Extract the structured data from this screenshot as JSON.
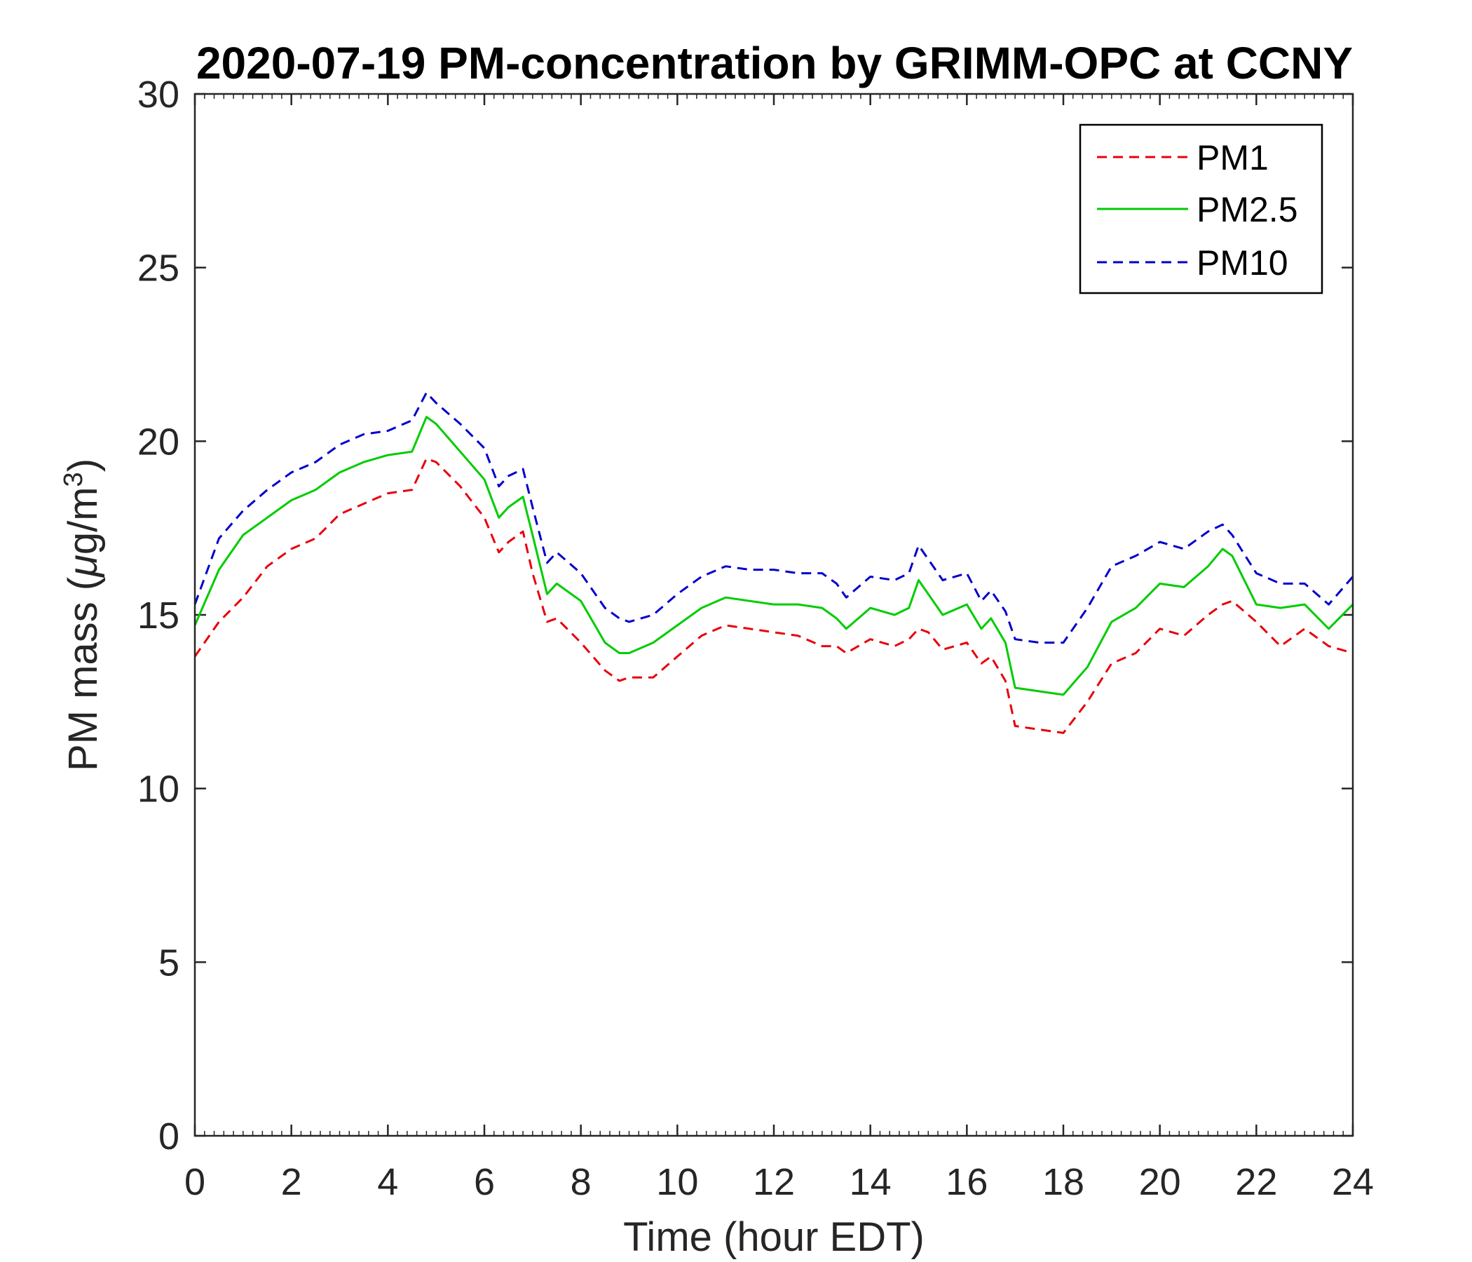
{
  "chart_data": {
    "type": "line",
    "title": "2020-07-19 PM-concentration by GRIMM-OPC at CCNY",
    "xlabel": "Time (hour EDT)",
    "ylabel": "PM mass (μg/m³)",
    "ylabel_parts": {
      "pre": "PM mass (",
      "mu": "μ",
      "mid": "g/m",
      "sup": "3",
      "post": ")"
    },
    "xlim": [
      0,
      24
    ],
    "ylim": [
      0,
      30
    ],
    "xticks": [
      0,
      2,
      4,
      6,
      8,
      10,
      12,
      14,
      16,
      18,
      20,
      22,
      24
    ],
    "yticks": [
      0,
      5,
      10,
      15,
      20,
      25,
      30
    ],
    "grid": false,
    "legend_position": "top-right",
    "x": [
      0,
      0.5,
      1,
      1.5,
      2,
      2.5,
      3,
      3.5,
      4,
      4.5,
      4.8,
      5,
      5.5,
      6,
      6.3,
      6.5,
      6.8,
      7,
      7.3,
      7.5,
      8,
      8.5,
      8.8,
      9,
      9.5,
      10,
      10.5,
      11,
      11.5,
      12,
      12.5,
      13,
      13.3,
      13.5,
      14,
      14.5,
      14.8,
      15,
      15.2,
      15.5,
      16,
      16.3,
      16.5,
      16.8,
      17,
      17.5,
      18,
      18.5,
      19,
      19.5,
      20,
      20.5,
      21,
      21.3,
      21.5,
      22,
      22.5,
      23,
      23.5,
      24
    ],
    "series": [
      {
        "name": "PM1",
        "color": "#e8000b",
        "dash": "dashed",
        "values": [
          13.8,
          14.8,
          15.5,
          16.4,
          16.9,
          17.2,
          17.9,
          18.2,
          18.5,
          18.6,
          19.5,
          19.4,
          18.7,
          17.8,
          16.8,
          17.1,
          17.4,
          16.2,
          14.8,
          14.9,
          14.2,
          13.4,
          13.1,
          13.2,
          13.2,
          13.8,
          14.4,
          14.7,
          14.6,
          14.5,
          14.4,
          14.1,
          14.1,
          13.9,
          14.3,
          14.1,
          14.3,
          14.6,
          14.5,
          14.0,
          14.2,
          13.6,
          13.8,
          13.1,
          11.8,
          11.7,
          11.6,
          12.5,
          13.6,
          13.9,
          14.6,
          14.4,
          15.0,
          15.3,
          15.4,
          14.8,
          14.1,
          14.6,
          14.1,
          13.9
        ]
      },
      {
        "name": "PM2.5",
        "color": "#00cc00",
        "dash": "solid",
        "values": [
          14.7,
          16.3,
          17.3,
          17.8,
          18.3,
          18.6,
          19.1,
          19.4,
          19.6,
          19.7,
          20.7,
          20.5,
          19.7,
          18.9,
          17.8,
          18.1,
          18.4,
          17.3,
          15.6,
          15.9,
          15.4,
          14.2,
          13.9,
          13.9,
          14.2,
          14.7,
          15.2,
          15.5,
          15.4,
          15.3,
          15.3,
          15.2,
          14.9,
          14.6,
          15.2,
          15.0,
          15.2,
          16.0,
          15.6,
          15.0,
          15.3,
          14.6,
          14.9,
          14.2,
          12.9,
          12.8,
          12.7,
          13.5,
          14.8,
          15.2,
          15.9,
          15.8,
          16.4,
          16.9,
          16.7,
          15.3,
          15.2,
          15.3,
          14.6,
          15.3
        ]
      },
      {
        "name": "PM10",
        "color": "#0000cc",
        "dash": "dashed",
        "values": [
          15.3,
          17.2,
          18.0,
          18.6,
          19.1,
          19.4,
          19.9,
          20.2,
          20.3,
          20.6,
          21.4,
          21.1,
          20.5,
          19.8,
          18.7,
          19.0,
          19.2,
          18.1,
          16.5,
          16.8,
          16.2,
          15.2,
          14.9,
          14.8,
          15.0,
          15.6,
          16.1,
          16.4,
          16.3,
          16.3,
          16.2,
          16.2,
          15.9,
          15.5,
          16.1,
          16.0,
          16.2,
          17.0,
          16.6,
          16.0,
          16.2,
          15.4,
          15.7,
          15.1,
          14.3,
          14.2,
          14.2,
          15.2,
          16.4,
          16.7,
          17.1,
          16.9,
          17.4,
          17.6,
          17.3,
          16.2,
          15.9,
          15.9,
          15.3,
          16.1
        ]
      }
    ]
  }
}
